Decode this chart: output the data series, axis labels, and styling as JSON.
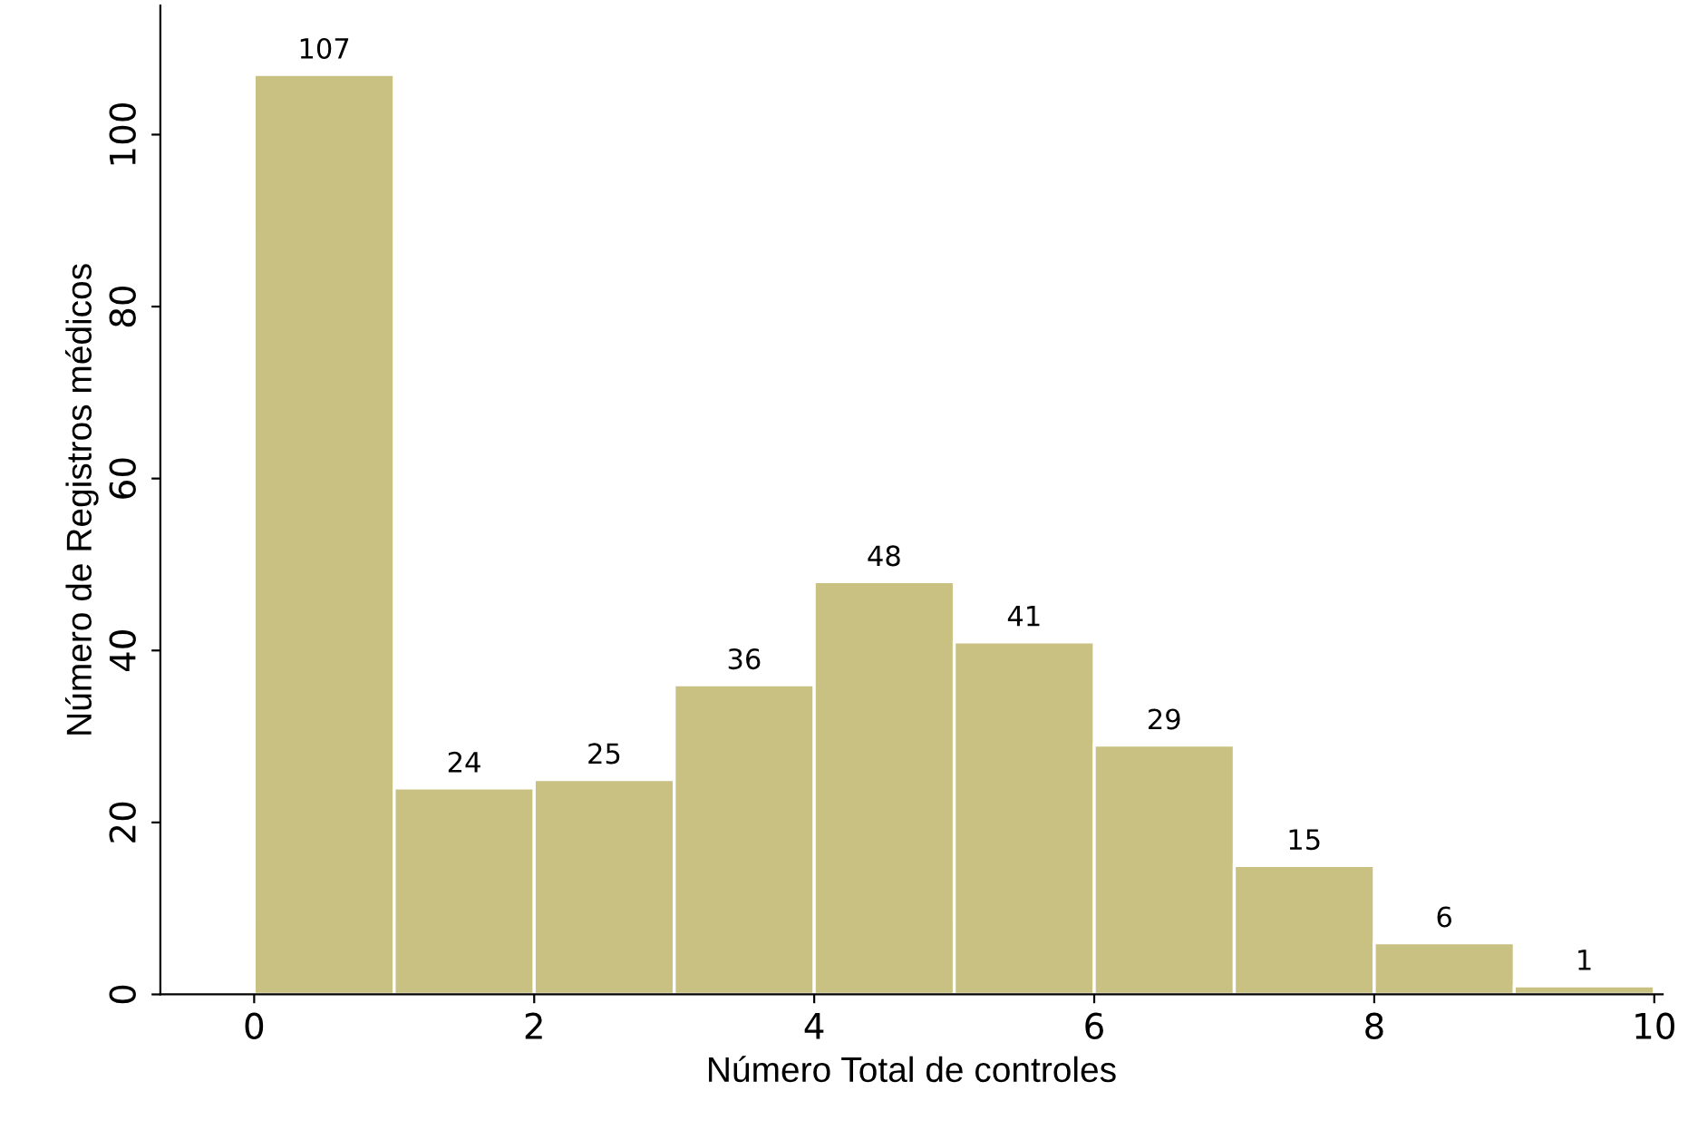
{
  "chart_data": {
    "type": "histogram",
    "xlabel": "Número Total de controles",
    "ylabel": "Número de Registros médicos",
    "bins": [
      0,
      1,
      2,
      3,
      4,
      5,
      6,
      7,
      8,
      9,
      10
    ],
    "values": [
      107,
      24,
      25,
      36,
      48,
      41,
      29,
      15,
      6,
      1
    ],
    "color": "#c8c182",
    "data_labels": true,
    "grid": false,
    "xlim": [
      -0.67,
      10.06
    ],
    "xticks": [
      0,
      2,
      4,
      6,
      8,
      10
    ],
    "ylim": [
      0,
      115
    ],
    "yticks": [
      0,
      20,
      40,
      60,
      80,
      100
    ]
  }
}
